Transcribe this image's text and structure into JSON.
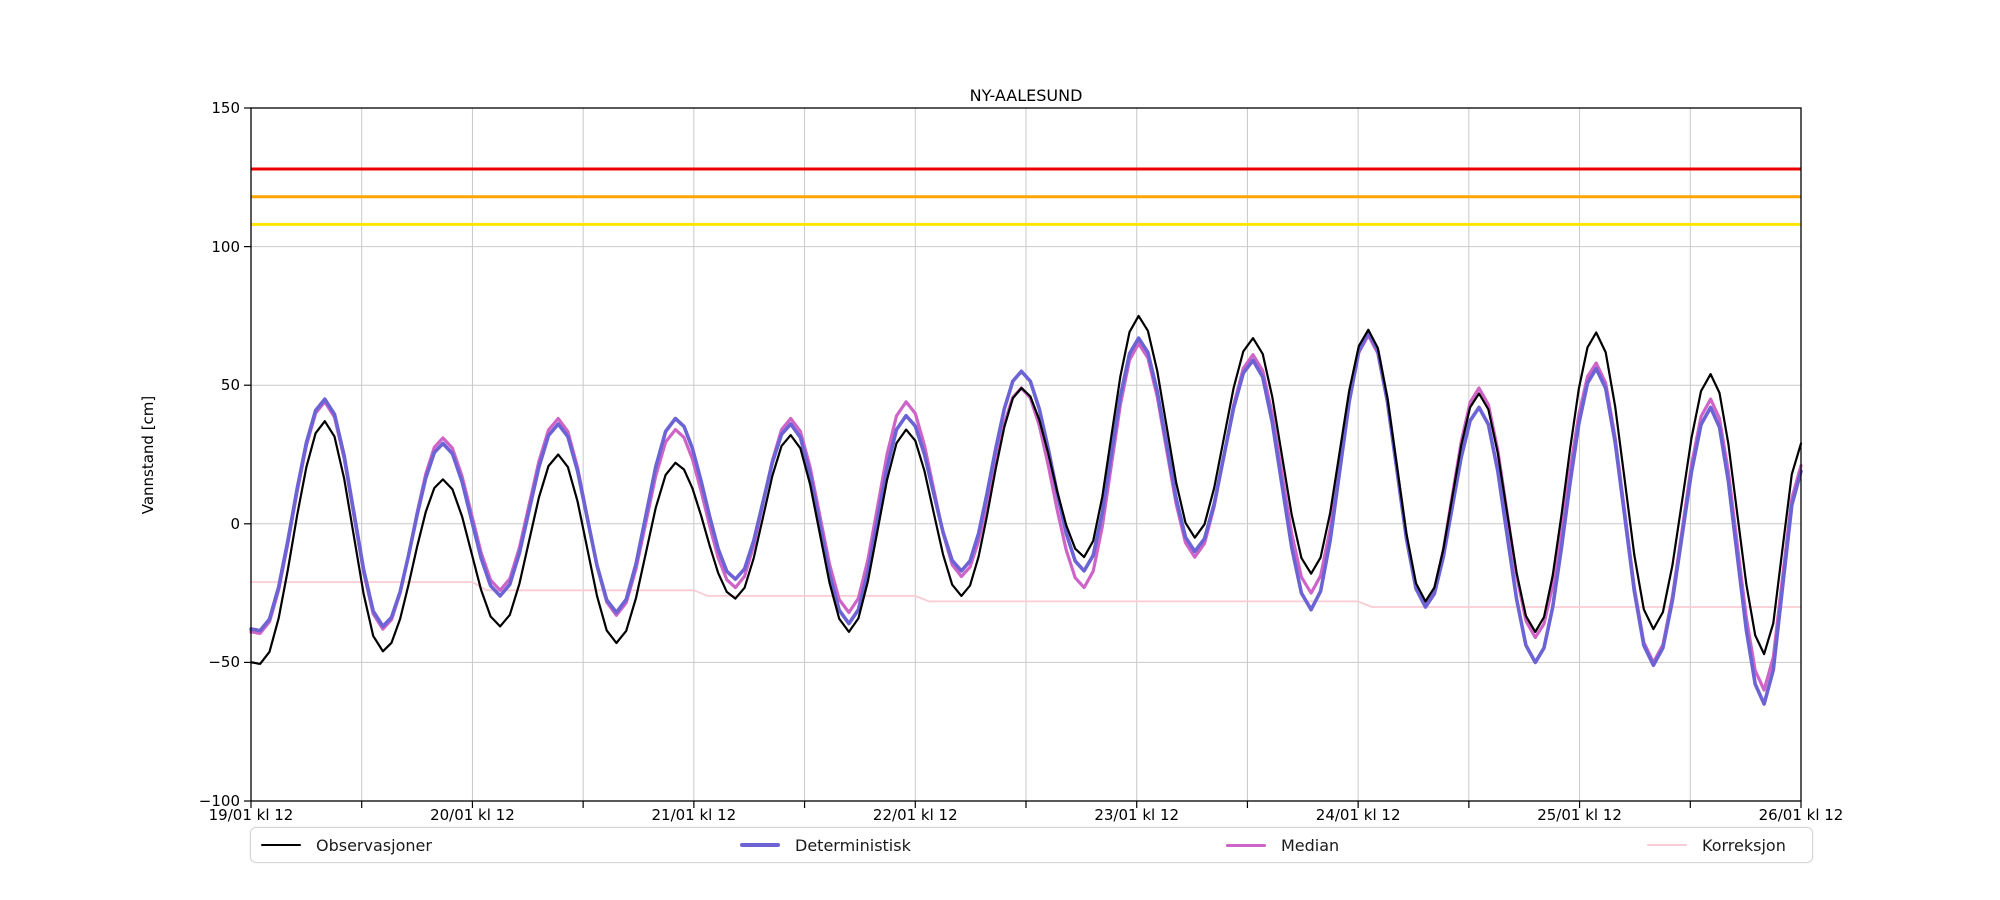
{
  "title": "NY-AALESUND",
  "ylabel": "Vannstand [cm]",
  "legend": [
    {
      "label": "Observasjoner",
      "color": "#000000",
      "thickness": 2.5
    },
    {
      "label": "Deterministisk",
      "color": "#6c63d4",
      "thickness": 4
    },
    {
      "label": "Median",
      "color": "#cf64c8",
      "thickness": 3.5
    },
    {
      "label": "Korreksjon",
      "color": "#f9cbd4",
      "thickness": 2
    }
  ],
  "chart_data": {
    "type": "line",
    "title": "NY-AALESUND",
    "ylabel": "Vannstand [cm]",
    "x_unit": "hours since 19/01 kl 12",
    "xlim": [
      0,
      168
    ],
    "ylim": [
      -100,
      150
    ],
    "grid": "on",
    "x_grid_interval_hours": 12,
    "y_grid_interval": 50,
    "legend_position": "bottom",
    "x_tick_labels": [
      "19/01 kl 12",
      "20/01 kl 12",
      "21/01 kl 12",
      "22/01 kl 12",
      "23/01 kl 12",
      "24/01 kl 12",
      "25/01 kl 12",
      "26/01 kl 12"
    ],
    "y_tick_labels": [
      "150",
      "100",
      "50",
      "0",
      "−50",
      "−100"
    ],
    "y_tick_values": [
      150,
      100,
      50,
      0,
      -50,
      -100
    ],
    "thresholds": [
      {
        "name": "red-warning-level",
        "value": 128,
        "color": "#ee0000"
      },
      {
        "name": "orange-warning-level",
        "value": 118,
        "color": "#ffa500"
      },
      {
        "name": "yellow-warning-level",
        "value": 108,
        "color": "#ffe600"
      }
    ],
    "series": [
      {
        "name": "Observasjoner",
        "color": "#000000",
        "line_width": 2.2,
        "interpolation": "tidal-cosine",
        "keypoints": [
          [
            0,
            -50
          ],
          [
            1,
            -50.5
          ],
          [
            8,
            37
          ],
          [
            14.3,
            -46
          ],
          [
            20.8,
            16
          ],
          [
            27,
            -37
          ],
          [
            33.3,
            25
          ],
          [
            39.6,
            -43
          ],
          [
            46,
            22
          ],
          [
            52.5,
            -27
          ],
          [
            58.5,
            32
          ],
          [
            64.8,
            -39
          ],
          [
            71,
            34
          ],
          [
            77,
            -26
          ],
          [
            83.5,
            49
          ],
          [
            90.3,
            -12
          ],
          [
            96.2,
            75
          ],
          [
            102.3,
            -5
          ],
          [
            108.6,
            67
          ],
          [
            114.9,
            -18
          ],
          [
            121.1,
            70
          ],
          [
            127.3,
            -28
          ],
          [
            133.1,
            47
          ],
          [
            139.2,
            -39
          ],
          [
            145.8,
            69
          ],
          [
            152,
            -38
          ],
          [
            158.2,
            54
          ],
          [
            164,
            -47
          ],
          [
            168,
            29
          ]
        ]
      },
      {
        "name": "Deterministisk",
        "color": "#6c63d4",
        "line_width": 3.6,
        "interpolation": "tidal-cosine",
        "keypoints": [
          [
            0,
            -38
          ],
          [
            1,
            -38.5
          ],
          [
            8,
            45
          ],
          [
            14.3,
            -37
          ],
          [
            20.8,
            29
          ],
          [
            27,
            -26
          ],
          [
            33.3,
            36
          ],
          [
            39.6,
            -32
          ],
          [
            46,
            38
          ],
          [
            52.5,
            -20
          ],
          [
            58.5,
            36
          ],
          [
            64.8,
            -36
          ],
          [
            71,
            39
          ],
          [
            77,
            -17
          ],
          [
            83.5,
            55
          ],
          [
            90.3,
            -17
          ],
          [
            96.2,
            67
          ],
          [
            102.3,
            -10
          ],
          [
            108.6,
            59
          ],
          [
            114.9,
            -31
          ],
          [
            121.1,
            69
          ],
          [
            127.3,
            -30
          ],
          [
            133.1,
            42
          ],
          [
            139.2,
            -50
          ],
          [
            145.8,
            56
          ],
          [
            152,
            -51
          ],
          [
            158.2,
            42
          ],
          [
            164,
            -65
          ],
          [
            168,
            19
          ]
        ]
      },
      {
        "name": "Median",
        "color": "#cf64c8",
        "line_width": 3.2,
        "interpolation": "tidal-cosine",
        "keypoints": [
          [
            0,
            -39
          ],
          [
            1,
            -39.5
          ],
          [
            8,
            44
          ],
          [
            14.3,
            -38
          ],
          [
            20.8,
            31
          ],
          [
            27,
            -24
          ],
          [
            33.3,
            38
          ],
          [
            39.6,
            -33
          ],
          [
            46,
            34
          ],
          [
            52.5,
            -23
          ],
          [
            58.5,
            38
          ],
          [
            64.8,
            -32
          ],
          [
            71,
            44
          ],
          [
            77,
            -19
          ],
          [
            83.5,
            49
          ],
          [
            90.3,
            -23
          ],
          [
            96.2,
            65
          ],
          [
            102.3,
            -12
          ],
          [
            108.6,
            61
          ],
          [
            114.9,
            -25
          ],
          [
            121.1,
            68
          ],
          [
            127.3,
            -29
          ],
          [
            133.1,
            49
          ],
          [
            139.2,
            -41
          ],
          [
            145.8,
            58
          ],
          [
            152,
            -50
          ],
          [
            158.2,
            45
          ],
          [
            164,
            -60
          ],
          [
            168,
            21
          ]
        ]
      },
      {
        "name": "Korreksjon",
        "color": "#f9cbd4",
        "line_width": 1.8,
        "interpolation": "linear",
        "keypoints": [
          [
            0,
            -21
          ],
          [
            24,
            -21
          ],
          [
            25.5,
            -24
          ],
          [
            48,
            -24
          ],
          [
            49.5,
            -26
          ],
          [
            72,
            -26
          ],
          [
            73.5,
            -28
          ],
          [
            120,
            -28
          ],
          [
            121.5,
            -30
          ],
          [
            168,
            -30
          ]
        ]
      }
    ]
  }
}
